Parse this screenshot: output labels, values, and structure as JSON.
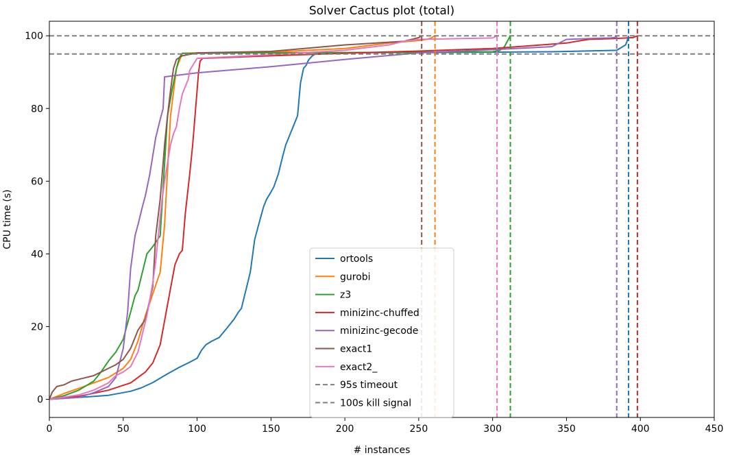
{
  "chart_data": {
    "type": "line",
    "title": "Solver Cactus plot (total)",
    "xlabel": "# instances",
    "ylabel": "CPU time (s)",
    "xlim": [
      0,
      450
    ],
    "ylim": [
      -5,
      104
    ],
    "xticks": [
      0,
      50,
      100,
      150,
      200,
      250,
      300,
      350,
      400,
      450
    ],
    "yticks": [
      0,
      20,
      40,
      60,
      80,
      100
    ],
    "grid": false,
    "legend_position": "lower-center",
    "series": [
      {
        "name": "ortools",
        "color": "#1f77b4",
        "x": [
          0,
          20,
          40,
          55,
          62,
          70,
          80,
          88,
          95,
          100,
          103,
          106,
          110,
          115,
          120,
          125,
          128,
          130,
          133,
          136,
          139,
          141,
          143,
          145,
          147,
          150,
          152,
          155,
          158,
          160,
          162,
          165,
          168,
          170,
          172,
          174,
          175,
          176,
          178,
          180,
          185,
          200,
          230,
          260,
          300,
          340,
          384,
          388,
          390,
          391,
          392
        ],
        "y": [
          0,
          0.5,
          1.1,
          2.2,
          3.1,
          4.6,
          7,
          8.8,
          10.2,
          11.3,
          13.5,
          15,
          16,
          17,
          19.5,
          22,
          24,
          25,
          30,
          35,
          44,
          47,
          50,
          53,
          55,
          57,
          58.5,
          62,
          67,
          70,
          72,
          75,
          78,
          87,
          91,
          92,
          93,
          93.6,
          94.5,
          95.0,
          95.2,
          95.3,
          95.4,
          95.4,
          95.5,
          95.6,
          96,
          97,
          97.5,
          98.5,
          100
        ]
      },
      {
        "name": "gurobi",
        "color": "#ff7f0e",
        "x": [
          0,
          10,
          20,
          30,
          40,
          50,
          55,
          60,
          65,
          70,
          75,
          78,
          82,
          86,
          90,
          100,
          150,
          200,
          230,
          250,
          255,
          258,
          260,
          261
        ],
        "y": [
          0,
          1.6,
          3,
          4.5,
          6,
          8.5,
          11,
          16,
          23,
          29,
          35,
          48,
          78,
          91,
          95.2,
          95.3,
          95.5,
          96.5,
          98,
          98.7,
          99,
          99.3,
          99.8,
          100
        ]
      },
      {
        "name": "z3",
        "color": "#2ca02c",
        "x": [
          0,
          10,
          20,
          30,
          35,
          40,
          45,
          50,
          55,
          58,
          60,
          63,
          66,
          70,
          75,
          80,
          83,
          86,
          88,
          90,
          100,
          150,
          200,
          250,
          300,
          305,
          308,
          310,
          312
        ],
        "y": [
          0,
          1,
          2.5,
          5,
          7.5,
          10.5,
          13,
          16.5,
          24,
          28.5,
          30,
          35,
          40,
          42,
          45,
          78,
          85,
          91,
          94,
          95.2,
          95.2,
          95.3,
          95.4,
          95.5,
          95.6,
          96,
          97,
          98.5,
          100
        ]
      },
      {
        "name": "minizinc-chuffed",
        "color": "#d62728",
        "x": [
          0,
          20,
          40,
          55,
          60,
          65,
          70,
          75,
          80,
          85,
          88,
          90,
          92,
          95,
          97,
          99,
          101,
          102,
          103,
          104,
          150,
          200,
          250,
          300,
          350,
          360,
          365,
          380,
          395,
          398
        ],
        "y": [
          0,
          0.8,
          2.5,
          4.5,
          6,
          7.5,
          10,
          15,
          26,
          37,
          40,
          41,
          51,
          62,
          70,
          80,
          90,
          93,
          93.5,
          93.8,
          94.5,
          95.2,
          95.8,
          96.5,
          98,
          98.7,
          99,
          99.2,
          99.5,
          100
        ]
      },
      {
        "name": "minizinc-gecode",
        "color": "#9467bd",
        "x": [
          0,
          20,
          30,
          40,
          45,
          50,
          53,
          55,
          58,
          60,
          63,
          65,
          68,
          70,
          72,
          75,
          77,
          78,
          100,
          150,
          200,
          250,
          300,
          340,
          350,
          370,
          380,
          383,
          384
        ],
        "y": [
          0,
          0.5,
          1.8,
          3.5,
          6,
          14,
          24,
          36,
          45,
          48,
          53,
          56,
          62,
          67,
          72,
          77,
          80,
          88.7,
          89.8,
          91.5,
          93.5,
          95.3,
          96.2,
          97,
          99,
          99.3,
          99.4,
          99.6,
          100
        ]
      },
      {
        "name": "exact1",
        "color": "#8c564b",
        "x": [
          0,
          2,
          5,
          10,
          15,
          20,
          25,
          30,
          35,
          40,
          45,
          50,
          55,
          60,
          65,
          70,
          72,
          75,
          78,
          80,
          82,
          84,
          86,
          90,
          100,
          150,
          200,
          240,
          250,
          252
        ],
        "y": [
          0,
          2,
          3.5,
          4,
          5,
          5.5,
          6,
          6.5,
          7.5,
          8.5,
          9.5,
          11,
          14,
          19,
          22,
          31,
          45,
          55,
          70,
          78,
          85,
          91,
          93.5,
          94.5,
          95.3,
          95.7,
          97.5,
          98.5,
          99.5,
          100
        ]
      },
      {
        "name": "exact2_",
        "color": "#e377c2",
        "x": [
          0,
          20,
          30,
          40,
          45,
          50,
          55,
          60,
          63,
          66,
          70,
          72,
          74,
          76,
          78,
          80,
          82,
          84,
          86,
          88,
          90,
          92,
          94,
          95,
          100,
          150,
          200,
          230,
          240,
          250,
          260,
          300,
          303
        ],
        "y": [
          0,
          1.2,
          2.5,
          4.5,
          6.5,
          7.5,
          9,
          13,
          18,
          23,
          32,
          38,
          46,
          54,
          60,
          65,
          70,
          73,
          75,
          80,
          84,
          86,
          88,
          90.5,
          93.8,
          94.8,
          96,
          97.5,
          98.5,
          99.0,
          99.1,
          99.4,
          100
        ]
      }
    ],
    "hlines": [
      {
        "name": "95s timeout",
        "y": 95,
        "color": "#7f7f7f"
      },
      {
        "name": "100s kill signal",
        "y": 100,
        "color": "#7f7f7f"
      }
    ],
    "vlines": [
      {
        "x": 252,
        "color": "#8c564b"
      },
      {
        "x": 261,
        "color": "#ff7f0e"
      },
      {
        "x": 303,
        "color": "#e377c2"
      },
      {
        "x": 312,
        "color": "#2ca02c"
      },
      {
        "x": 384,
        "color": "#9467bd"
      },
      {
        "x": 392,
        "color": "#1f77b4"
      },
      {
        "x": 398,
        "color": "#d62728"
      }
    ]
  }
}
